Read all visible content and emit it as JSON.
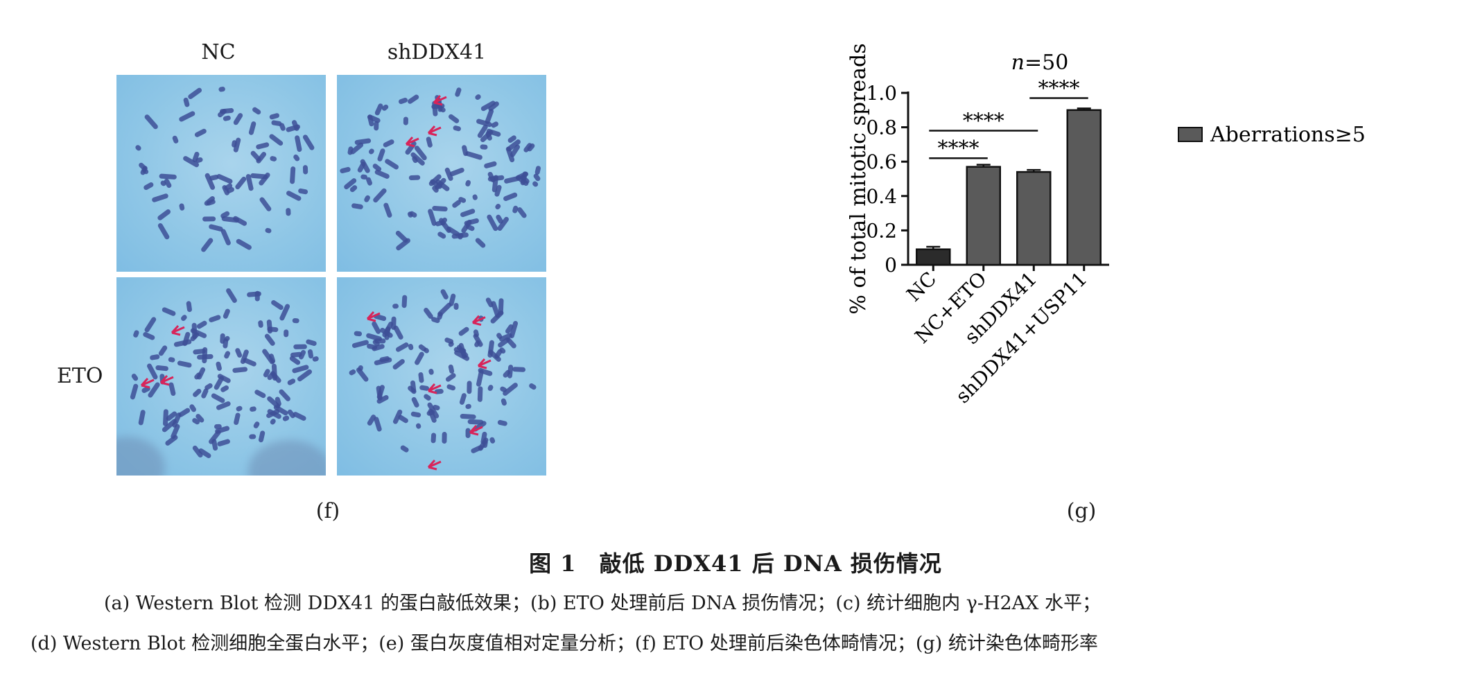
{
  "panel_f": {
    "column_labels": [
      "NC",
      "shDDX41"
    ],
    "row_label": "ETO",
    "tag": "(f)"
  },
  "panel_g": {
    "tag": "(g)"
  },
  "chart_data": {
    "type": "bar",
    "title": "n=50",
    "title_italic_part": "n",
    "ylabel": "% of total mitotic spreads",
    "xlabel": "",
    "categories": [
      "NC",
      "NC+ETO",
      "shDDX41",
      "shDDX41+USP11"
    ],
    "series": [
      {
        "name": "Aberrations≥5",
        "values": [
          0.09,
          0.57,
          0.54,
          0.9
        ],
        "errors": [
          0.015,
          0.012,
          0.012,
          0.01
        ]
      }
    ],
    "bar_colors": [
      "#2b2b2b",
      "#5a5a5a",
      "#5a5a5a",
      "#5a5a5a"
    ],
    "ylim": [
      0,
      1.0
    ],
    "yticks": [
      "0",
      "0.2",
      "0.4",
      "0.6",
      "0.8",
      "1.0"
    ],
    "significance": [
      {
        "from": 0,
        "to": 1,
        "label": "****",
        "y": 0.62
      },
      {
        "from": 0,
        "to": 2,
        "label": "****",
        "y": 0.78
      },
      {
        "from": 2,
        "to": 3,
        "label": "****",
        "y": 0.97
      }
    ],
    "legend_position": "top-right",
    "grid": false
  },
  "figure": {
    "title": "图 1　敲低 DDX41 后 DNA 损伤情况",
    "caption_line1": "(a) Western Blot 检测 DDX41 的蛋白敲低效果；(b) ETO 处理前后 DNA 损伤情况；(c) 统计细胞内 γ-H2AX 水平；",
    "caption_line2": "(d) Western Blot 检测细胞全蛋白水平；(e) 蛋白灰度值相对定量分析；(f) ETO 处理前后染色体畸情况；(g) 统计染色体畸形率"
  }
}
